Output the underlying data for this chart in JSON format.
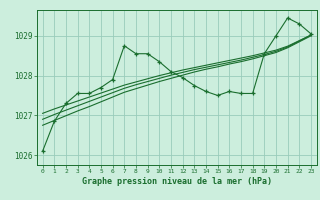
{
  "title": "Graphe pression niveau de la mer (hPa)",
  "bg_color": "#cceedd",
  "grid_color": "#99ccbb",
  "line_color": "#1a6e2e",
  "x_values": [
    0,
    1,
    2,
    3,
    4,
    5,
    6,
    7,
    8,
    9,
    10,
    11,
    12,
    13,
    14,
    15,
    16,
    17,
    18,
    19,
    20,
    21,
    22,
    23
  ],
  "main_line": [
    1026.1,
    1026.85,
    1027.3,
    1027.55,
    1027.55,
    1027.7,
    1027.9,
    1028.75,
    1028.55,
    1028.55,
    1028.35,
    1028.1,
    1027.95,
    1027.75,
    1027.6,
    1027.5,
    1027.6,
    1027.55,
    1027.55,
    1028.55,
    1029.0,
    1029.45,
    1029.3,
    1029.05
  ],
  "trend_line1": [
    1026.75,
    1026.87,
    1026.99,
    1027.11,
    1027.22,
    1027.34,
    1027.46,
    1027.58,
    1027.67,
    1027.76,
    1027.85,
    1027.93,
    1028.01,
    1028.09,
    1028.16,
    1028.22,
    1028.29,
    1028.35,
    1028.42,
    1028.5,
    1028.58,
    1028.7,
    1028.85,
    1029.0
  ],
  "trend_line2": [
    1026.9,
    1027.02,
    1027.13,
    1027.24,
    1027.35,
    1027.46,
    1027.57,
    1027.68,
    1027.77,
    1027.85,
    1027.93,
    1028.01,
    1028.08,
    1028.15,
    1028.21,
    1028.27,
    1028.33,
    1028.39,
    1028.46,
    1028.53,
    1028.61,
    1028.72,
    1028.87,
    1029.02
  ],
  "trend_line3": [
    1027.05,
    1027.16,
    1027.26,
    1027.36,
    1027.46,
    1027.56,
    1027.66,
    1027.76,
    1027.84,
    1027.92,
    1028.0,
    1028.07,
    1028.14,
    1028.2,
    1028.26,
    1028.32,
    1028.38,
    1028.44,
    1028.5,
    1028.57,
    1028.64,
    1028.74,
    1028.88,
    1029.02
  ],
  "ylim": [
    1025.75,
    1029.65
  ],
  "yticks": [
    1026,
    1027,
    1028,
    1029
  ],
  "xlim": [
    -0.5,
    23.5
  ]
}
